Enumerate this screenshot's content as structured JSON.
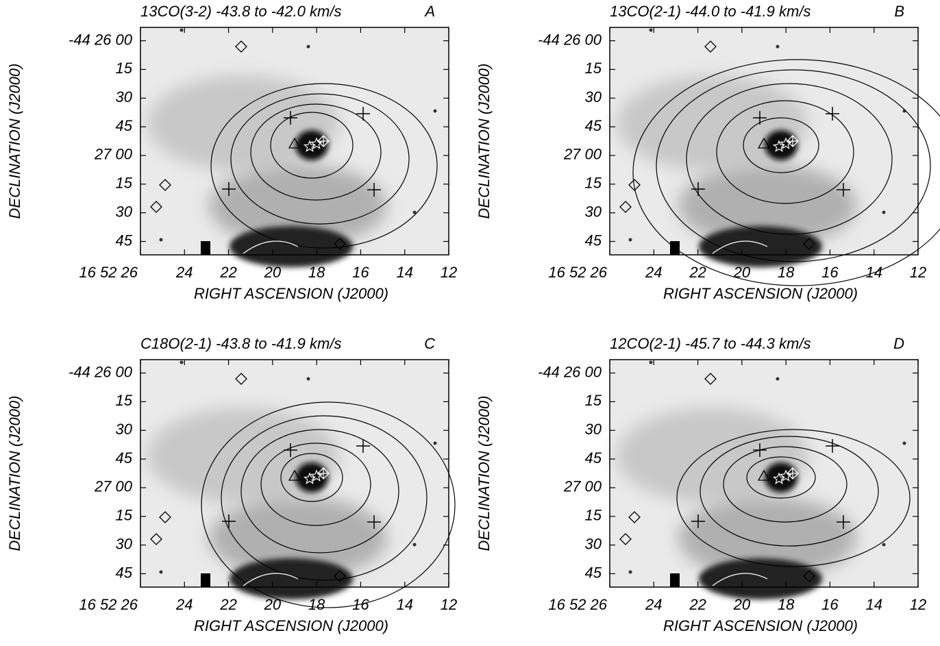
{
  "chart_data": [
    {
      "type": "contour",
      "title": "13CO(3-2) -43.8 to -42.0 km/s",
      "panel": "A",
      "xlabel": "RIGHT ASCENSION (J2000)",
      "ylabel": "DECLINATION (J2000)",
      "xlim": [
        26,
        12
      ],
      "ylim": [
        112,
        -7
      ],
      "xticks": [
        {
          "value": 26,
          "label": "16 52 26"
        },
        24,
        22,
        20,
        18,
        16,
        14,
        12
      ],
      "yticks": [
        {
          "value": 0,
          "label": "-44 26 00"
        },
        15,
        30,
        45,
        {
          "value": 60,
          "label": "27 00"
        },
        {
          "value": 75,
          "label": "15"
        },
        {
          "value": 90,
          "label": "30"
        },
        {
          "value": 105,
          "label": "45"
        }
      ]
    },
    {
      "type": "contour",
      "title": "13CO(2-1) -44.0 to -41.9 km/s",
      "panel": "B",
      "xlabel": "RIGHT ASCENSION (J2000)",
      "ylabel": "DECLINATION (J2000)",
      "xlim": [
        26,
        12
      ],
      "ylim": [
        112,
        -7
      ],
      "xticks": [
        {
          "value": 26,
          "label": "16 52 26"
        },
        24,
        22,
        20,
        18,
        16,
        14,
        12
      ],
      "yticks": [
        {
          "value": 0,
          "label": "-44 26 00"
        },
        15,
        30,
        45,
        {
          "value": 60,
          "label": "27 00"
        },
        {
          "value": 75,
          "label": "15"
        },
        {
          "value": 90,
          "label": "30"
        },
        {
          "value": 105,
          "label": "45"
        }
      ]
    },
    {
      "type": "contour",
      "title": "C18O(2-1) -43.8 to -41.9 km/s",
      "panel": "C",
      "xlabel": "RIGHT ASCENSION (J2000)",
      "ylabel": "DECLINATION (J2000)",
      "xlim": [
        26,
        12
      ],
      "ylim": [
        112,
        -7
      ],
      "xticks": [
        {
          "value": 26,
          "label": "16 52 26"
        },
        24,
        22,
        20,
        18,
        16,
        14,
        12
      ],
      "yticks": [
        {
          "value": 0,
          "label": "-44 26 00"
        },
        15,
        30,
        45,
        {
          "value": 60,
          "label": "27 00"
        },
        {
          "value": 75,
          "label": "15"
        },
        {
          "value": 90,
          "label": "30"
        },
        {
          "value": 105,
          "label": "45"
        }
      ]
    },
    {
      "type": "contour",
      "title": "12CO(2-1) -45.7 to -44.3 km/s",
      "panel": "D",
      "xlabel": "RIGHT ASCENSION (J2000)",
      "ylabel": "DECLINATION (J2000)",
      "xlim": [
        26,
        12
      ],
      "ylim": [
        112,
        -7
      ],
      "xticks": [
        {
          "value": 26,
          "label": "16 52 26"
        },
        24,
        22,
        20,
        18,
        16,
        14,
        12
      ],
      "yticks": [
        {
          "value": 0,
          "label": "-44 26 00"
        },
        15,
        30,
        45,
        {
          "value": 60,
          "label": "27 00"
        },
        {
          "value": 75,
          "label": "15"
        },
        {
          "value": 90,
          "label": "30"
        },
        {
          "value": 105,
          "label": "45"
        }
      ]
    }
  ]
}
